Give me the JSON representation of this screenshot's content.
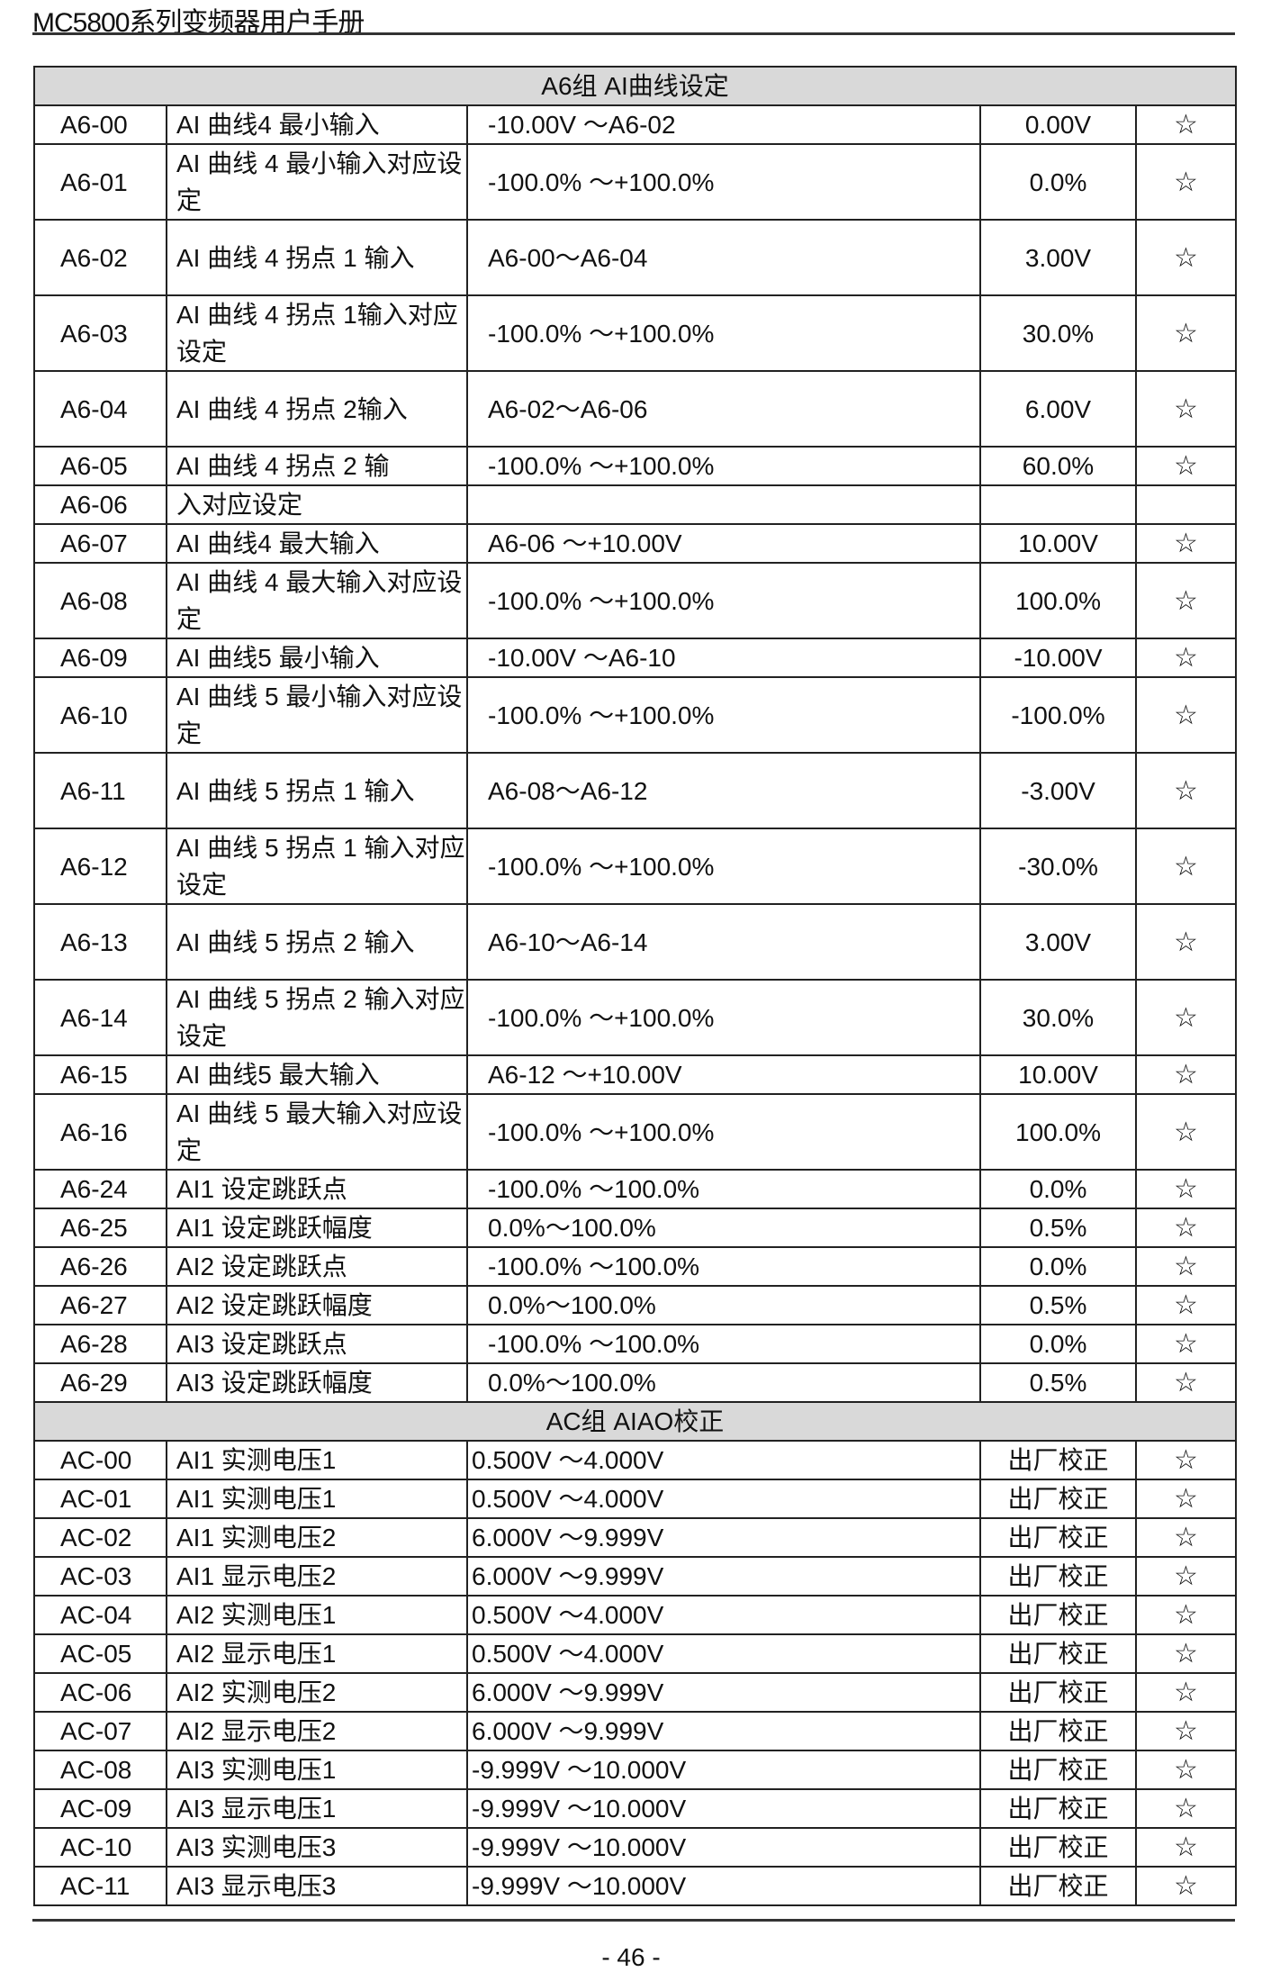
{
  "header": {
    "title": "MC5800系列变频器用户手册"
  },
  "footer": {
    "page_number": "- 46 -"
  },
  "groups": [
    {
      "title": "A6组  AI曲线设定",
      "rows": [
        {
          "code": "A6-00",
          "name": "AI 曲线4 最小输入",
          "range": "-10.00V ～A6-02",
          "default": "0.00V",
          "attr": "☆"
        },
        {
          "code": "A6-01",
          "name": "AI 曲线 4 最小输入对应设定",
          "range": "-100.0% ～+100.0%",
          "default": "0.0%",
          "attr": "☆"
        },
        {
          "code": "A6-02",
          "name": "AI 曲线  4 拐点  1 输入",
          "range": "A6-00～A6-04",
          "default": "3.00V",
          "attr": "☆"
        },
        {
          "code": "A6-03",
          "name": "AI 曲线  4 拐点  1输入对应设定",
          "range": "-100.0% ～+100.0%",
          "default": "30.0%",
          "attr": "☆"
        },
        {
          "code": "A6-04",
          "name": "AI 曲线  4 拐点  2输入",
          "range": "A6-02～A6-06",
          "default": "6.00V",
          "attr": "☆"
        },
        {
          "code": "A6-05",
          "name": "AI 曲线  4 拐点  2 输",
          "range": "-100.0% ～+100.0%",
          "default": "60.0%",
          "attr": "☆"
        },
        {
          "code": "A6-06",
          "name": "入对应设定",
          "range": "",
          "default": "",
          "attr": ""
        },
        {
          "code": "A6-07",
          "name": "AI 曲线4 最大输入",
          "range": "A6-06 ～+10.00V",
          "default": "10.00V",
          "attr": "☆"
        },
        {
          "code": "A6-08",
          "name": "AI 曲线  4 最大输入对应设定",
          "range": "-100.0% ～+100.0%",
          "default": "100.0%",
          "attr": "☆"
        },
        {
          "code": "A6-09",
          "name": "AI 曲线5 最小输入",
          "range": "-10.00V ～A6-10",
          "default": "-10.00V",
          "attr": "☆"
        },
        {
          "code": "A6-10",
          "name": "AI 曲线  5 最小输入对应设定",
          "range": "-100.0% ～+100.0%",
          "default": "-100.0%",
          "attr": "☆"
        },
        {
          "code": "A6-11",
          "name": "AI 曲线  5 拐点  1 输入",
          "range": "A6-08～A6-12",
          "default": "-3.00V",
          "attr": "☆"
        },
        {
          "code": "A6-12",
          "name": "AI 曲线  5 拐点  1 输入对应设定",
          "range": "-100.0% ～+100.0%",
          "default": "-30.0%",
          "attr": "☆"
        },
        {
          "code": "A6-13",
          "name": "AI 曲线  5 拐点  2 输入",
          "range": " A6-10～A6-14",
          "default": "3.00V",
          "attr": "☆"
        },
        {
          "code": "A6-14",
          "name": "AI 曲线  5 拐点  2 输入对应设定",
          "range": "-100.0% ～+100.0%",
          "default": "30.0%",
          "attr": "☆"
        },
        {
          "code": "A6-15",
          "name": "AI 曲线5 最大输入",
          "range": "A6-12 ～+10.00V",
          "default": "10.00V",
          "attr": "☆"
        },
        {
          "code": "A6-16",
          "name": "AI 曲线  5 最大输入对应设定",
          "range": "-100.0% ～+100.0%",
          "default": "100.0%",
          "attr": "☆"
        },
        {
          "code": "A6-24",
          "name": "AI1 设定跳跃点",
          "range": "-100.0%  ～100.0%",
          "default": "0.0%",
          "attr": "☆"
        },
        {
          "code": "A6-25",
          "name": "AI1 设定跳跃幅度",
          "range": "0.0%～100.0%",
          "default": "0.5%",
          "attr": "☆"
        },
        {
          "code": "A6-26",
          "name": "AI2 设定跳跃点",
          "range": "-100.0%  ～100.0%",
          "default": "0.0%",
          "attr": "☆"
        },
        {
          "code": "A6-27",
          "name": "AI2 设定跳跃幅度",
          "range": "0.0%～100.0%",
          "default": "0.5%",
          "attr": "☆"
        },
        {
          "code": "A6-28",
          "name": "AI3 设定跳跃点",
          "range": "-100.0% ～100.0%",
          "default": "0.0%",
          "attr": "☆"
        },
        {
          "code": "A6-29",
          "name": "AI3 设定跳跃幅度",
          "range": "0.0%～100.0%",
          "default": "0.5%",
          "attr": "☆"
        }
      ]
    },
    {
      "title": "AC组   AIAO校正",
      "rows": [
        {
          "code": "AC-00",
          "name": "AI1 实测电压1",
          "range": "0.500V  ～4.000V",
          "default": "出厂校正",
          "attr": "☆"
        },
        {
          "code": "AC-01",
          "name": "AI1 实测电压1",
          "range": "0.500V  ～4.000V",
          "default": "出厂校正",
          "attr": "☆"
        },
        {
          "code": "AC-02",
          "name": "AI1 实测电压2",
          "range": "6.000V  ～9.999V",
          "default": "出厂校正",
          "attr": "☆"
        },
        {
          "code": "AC-03",
          "name": "AI1 显示电压2",
          "range": "6.000V  ～9.999V",
          "default": "出厂校正",
          "attr": "☆"
        },
        {
          "code": "AC-04",
          "name": "AI2 实测电压1",
          "range": "0.500V  ～4.000V",
          "default": "出厂校正",
          "attr": "☆"
        },
        {
          "code": "AC-05",
          "name": "AI2 显示电压1",
          "range": "0.500V  ～4.000V",
          "default": "出厂校正",
          "attr": "☆"
        },
        {
          "code": "AC-06",
          "name": "AI2 实测电压2",
          "range": "6.000V  ～9.999V",
          "default": "出厂校正",
          "attr": "☆"
        },
        {
          "code": "AC-07",
          "name": "AI2 显示电压2",
          "range": "6.000V  ～9.999V",
          "default": "出厂校正",
          "attr": "☆"
        },
        {
          "code": "AC-08",
          "name": "AI3 实测电压1",
          "range": "-9.999V ～10.000V",
          "default": "出厂校正",
          "attr": "☆"
        },
        {
          "code": "AC-09",
          "name": "AI3 显示电压1",
          "range": "-9.999V ～10.000V",
          "default": "出厂校正",
          "attr": "☆"
        },
        {
          "code": "AC-10",
          "name": "AI3 实测电压3",
          "range": "-9.999V ～10.000V",
          "default": "出厂校正",
          "attr": "☆"
        },
        {
          "code": "AC-11",
          "name": "AI3 显示电压3",
          "range": "-9.999V ～10.000V",
          "default": "出厂校正",
          "attr": "☆"
        }
      ]
    }
  ]
}
